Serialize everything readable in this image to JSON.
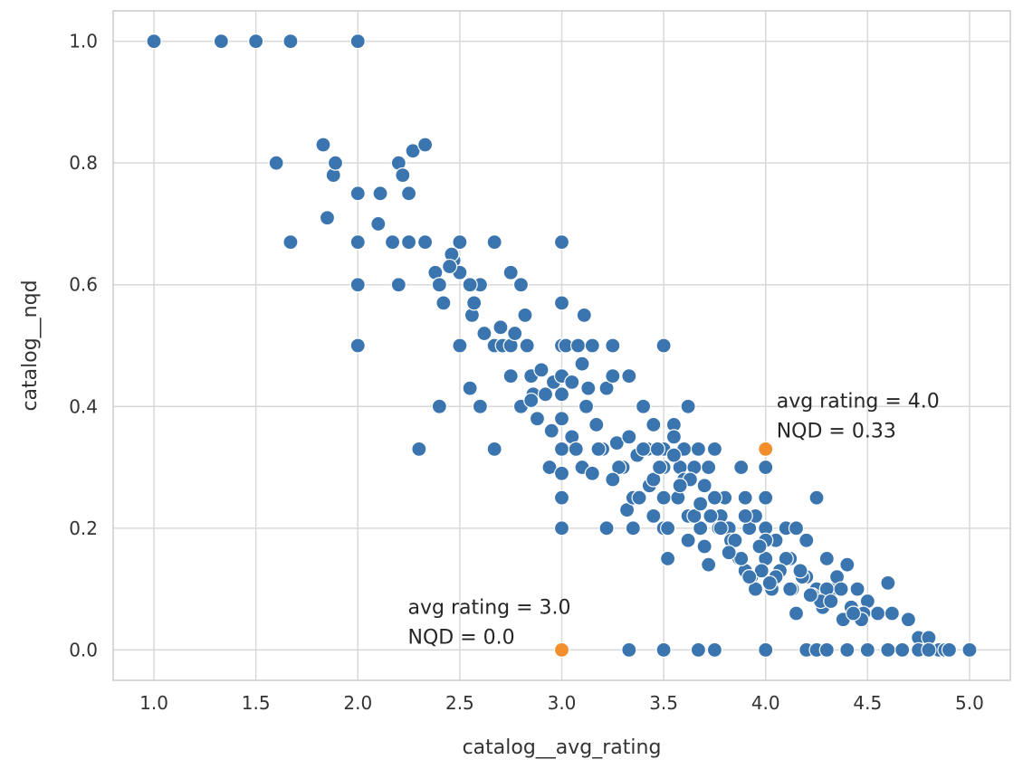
{
  "chart_data": {
    "type": "scatter",
    "xlabel": "catalog__avg_rating",
    "ylabel": "catalog__nqd",
    "xlim": [
      0.8,
      5.2
    ],
    "ylim": [
      -0.05,
      1.05
    ],
    "xticks": [
      "1.0",
      "1.5",
      "2.0",
      "2.5",
      "3.0",
      "3.5",
      "4.0",
      "4.5",
      "5.0"
    ],
    "yticks": [
      "0.0",
      "0.2",
      "0.4",
      "0.6",
      "0.8",
      "1.0"
    ],
    "grid": true,
    "colors": {
      "points": "#3b75af",
      "highlight": "#f28e2b",
      "point_edge": "#ffffff"
    },
    "series": [
      {
        "x": [
          1.0,
          1.33,
          1.5,
          1.67,
          2.0,
          1.83,
          1.88,
          1.89,
          1.6,
          2.2,
          2.22,
          2.27,
          2.33,
          1.85,
          1.67,
          2.0,
          2.0,
          2.11,
          2.25,
          2.1,
          2.0,
          2.17,
          2.25,
          2.33,
          2.2,
          2.0,
          2.0,
          2.38,
          2.4,
          2.42,
          2.47,
          2.5,
          2.5,
          2.46,
          2.45,
          2.5,
          2.56,
          2.6,
          2.55,
          2.57,
          2.62,
          2.67,
          2.67,
          2.7,
          2.71,
          2.75,
          2.75,
          2.77,
          2.8,
          2.82,
          2.83,
          2.8,
          2.85,
          2.86,
          2.88,
          2.9,
          2.92,
          2.94,
          2.96,
          3.0,
          3.0,
          3.0,
          3.0,
          3.0,
          3.0,
          3.0,
          3.0,
          3.0,
          3.0,
          3.02,
          3.05,
          3.08,
          3.1,
          3.1,
          3.11,
          3.13,
          3.15,
          3.17,
          3.2,
          3.22,
          3.25,
          3.25,
          3.27,
          3.3,
          3.33,
          3.33,
          3.37,
          3.4,
          3.42,
          3.45,
          3.5,
          3.5,
          3.5,
          3.5,
          3.5,
          3.55,
          3.58,
          3.6,
          3.62,
          3.65,
          3.67,
          3.7,
          3.72,
          3.75,
          3.75,
          3.78,
          3.8,
          3.82,
          3.85,
          3.88,
          3.9,
          3.92,
          3.95,
          4.0,
          4.0,
          4.0,
          4.0,
          4.05,
          4.1,
          4.12,
          4.15,
          4.2,
          4.25,
          4.25,
          4.3,
          4.33,
          4.35,
          4.4,
          4.45,
          4.5,
          4.55,
          4.6,
          4.62,
          4.7,
          4.75,
          4.8,
          4.85,
          4.88,
          5.0,
          3.2,
          3.3,
          3.4,
          3.6,
          3.7,
          3.8,
          3.9,
          4.0,
          4.1,
          4.2,
          4.3,
          2.3,
          2.4,
          2.55,
          2.6,
          2.67,
          2.9,
          3.05,
          3.12,
          3.18,
          3.28,
          3.35,
          3.45,
          3.55,
          3.63,
          3.68,
          3.73,
          3.83,
          3.93,
          4.03,
          4.13,
          4.18,
          4.23,
          4.28,
          4.38,
          4.42,
          4.48,
          3.33,
          3.5,
          3.67,
          3.75,
          4.0,
          4.2,
          4.25,
          4.3,
          4.4,
          4.5,
          4.6,
          4.67,
          4.75,
          4.8,
          4.9,
          3.15,
          3.22,
          3.32,
          3.43,
          3.47,
          3.52,
          3.57,
          3.62,
          3.7,
          3.77,
          3.87,
          3.97,
          4.07,
          4.17,
          4.27,
          4.37,
          4.47,
          3.9,
          3.95,
          4.05,
          4.15,
          4.22,
          4.32,
          4.43,
          3.35,
          3.45,
          3.55,
          3.65,
          3.75,
          3.85,
          2.75,
          2.85,
          2.95,
          3.07,
          3.25,
          3.38,
          3.48,
          3.58,
          3.68,
          3.78,
          3.88,
          3.98,
          3.52,
          3.62,
          3.72,
          3.82,
          3.92,
          4.02,
          4.12
        ],
        "y": [
          1.0,
          1.0,
          1.0,
          1.0,
          1.0,
          0.83,
          0.78,
          0.8,
          0.8,
          0.8,
          0.78,
          0.82,
          0.83,
          0.71,
          0.67,
          0.75,
          0.67,
          0.75,
          0.75,
          0.7,
          0.6,
          0.67,
          0.67,
          0.67,
          0.6,
          0.5,
          0.5,
          0.62,
          0.6,
          0.57,
          0.64,
          0.67,
          0.62,
          0.65,
          0.63,
          0.5,
          0.55,
          0.6,
          0.43,
          0.57,
          0.52,
          0.67,
          0.5,
          0.53,
          0.5,
          0.62,
          0.5,
          0.52,
          0.6,
          0.55,
          0.5,
          0.4,
          0.45,
          0.42,
          0.38,
          0.46,
          0.42,
          0.3,
          0.44,
          0.67,
          0.57,
          0.5,
          0.45,
          0.42,
          0.38,
          0.33,
          0.29,
          0.25,
          0.2,
          0.5,
          0.44,
          0.5,
          0.47,
          0.3,
          0.55,
          0.43,
          0.5,
          0.37,
          0.33,
          0.43,
          0.5,
          0.45,
          0.34,
          0.3,
          0.45,
          0.35,
          0.32,
          0.4,
          0.33,
          0.37,
          0.5,
          0.33,
          0.3,
          0.25,
          0.2,
          0.37,
          0.3,
          0.33,
          0.4,
          0.3,
          0.33,
          0.27,
          0.3,
          0.33,
          0.25,
          0.22,
          0.25,
          0.2,
          0.18,
          0.3,
          0.25,
          0.2,
          0.22,
          0.3,
          0.25,
          0.2,
          0.15,
          0.18,
          0.2,
          0.15,
          0.2,
          0.18,
          0.25,
          0.1,
          0.15,
          0.1,
          0.12,
          0.14,
          0.1,
          0.08,
          0.06,
          0.11,
          0.06,
          0.05,
          0.02,
          0.02,
          0.0,
          0.0,
          0.0,
          0.33,
          0.3,
          0.33,
          0.28,
          0.27,
          0.25,
          0.22,
          0.18,
          0.15,
          0.12,
          0.1,
          0.33,
          0.4,
          0.6,
          0.4,
          0.33,
          0.46,
          0.35,
          0.4,
          0.33,
          0.3,
          0.2,
          0.22,
          0.35,
          0.28,
          0.2,
          0.22,
          0.18,
          0.12,
          0.1,
          0.1,
          0.12,
          0.09,
          0.07,
          0.05,
          0.07,
          0.06,
          0.0,
          0.0,
          0.0,
          0.0,
          0.0,
          0.0,
          0.0,
          0.0,
          0.0,
          0.0,
          0.0,
          0.0,
          0.0,
          0.0,
          0.0,
          0.29,
          0.2,
          0.23,
          0.27,
          0.33,
          0.2,
          0.25,
          0.22,
          0.17,
          0.2,
          0.15,
          0.17,
          0.13,
          0.13,
          0.08,
          0.1,
          0.05,
          0.13,
          0.1,
          0.12,
          0.06,
          0.09,
          0.08,
          0.06,
          0.25,
          0.28,
          0.32,
          0.22,
          0.25,
          0.18,
          0.45,
          0.41,
          0.36,
          0.33,
          0.28,
          0.25,
          0.3,
          0.27,
          0.24,
          0.2,
          0.15,
          0.13,
          0.15,
          0.18,
          0.14,
          0.16,
          0.12,
          0.11,
          0.1
        ]
      },
      {
        "x": [
          3.0,
          4.0
        ],
        "y": [
          0.0,
          0.33
        ],
        "highlight": true
      }
    ],
    "annotations": [
      {
        "lines": [
          "avg rating = 3.0",
          "NQD = 0.0"
        ],
        "x": 3.0,
        "y": 0.0
      },
      {
        "lines": [
          "avg rating = 4.0",
          "NQD = 0.33"
        ],
        "x": 4.0,
        "y": 0.33
      }
    ]
  }
}
